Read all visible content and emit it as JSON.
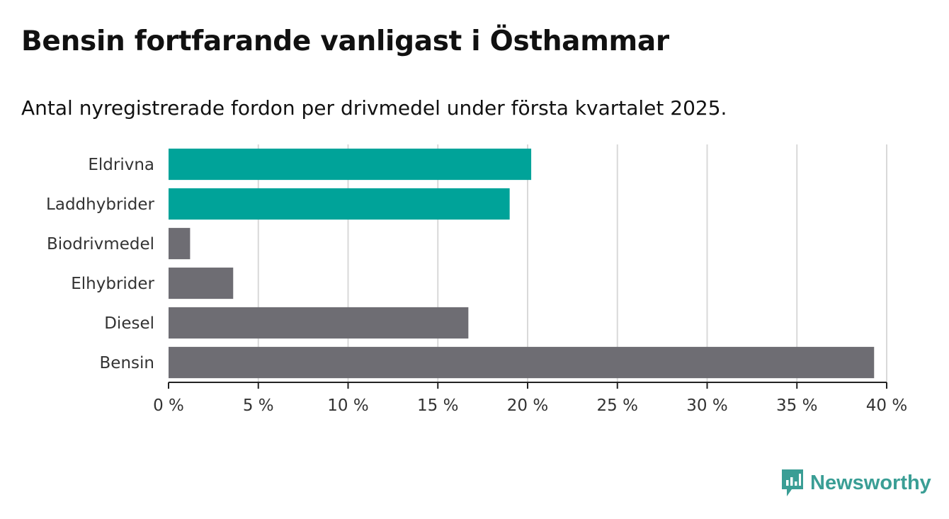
{
  "title": "Bensin fortfarande vanligast i Östhammar",
  "subtitle": "Antal nyregistrerade fordon per drivmedel under första kvartalet 2025.",
  "brand": {
    "name": "Newsworthy",
    "icon": "newsworthy-logo-icon",
    "color": "#3a9e95"
  },
  "chart_data": {
    "type": "bar",
    "orientation": "horizontal",
    "categories": [
      "Eldrivna",
      "Laddhybrider",
      "Biodrivmedel",
      "Elhybrider",
      "Diesel",
      "Bensin"
    ],
    "values": [
      20.2,
      19.0,
      1.2,
      3.6,
      16.7,
      39.3
    ],
    "colors": [
      "#00a399",
      "#00a399",
      "#6e6d73",
      "#6e6d73",
      "#6e6d73",
      "#6e6d73"
    ],
    "xlim": [
      0,
      40
    ],
    "ticks": [
      0,
      5,
      10,
      15,
      20,
      25,
      30,
      35,
      40
    ],
    "tick_labels": [
      "0 %",
      "5 %",
      "10 %",
      "15 %",
      "20 %",
      "25 %",
      "30 %",
      "35 %",
      "40 %"
    ],
    "grid": true,
    "xlabel": "",
    "ylabel": ""
  }
}
